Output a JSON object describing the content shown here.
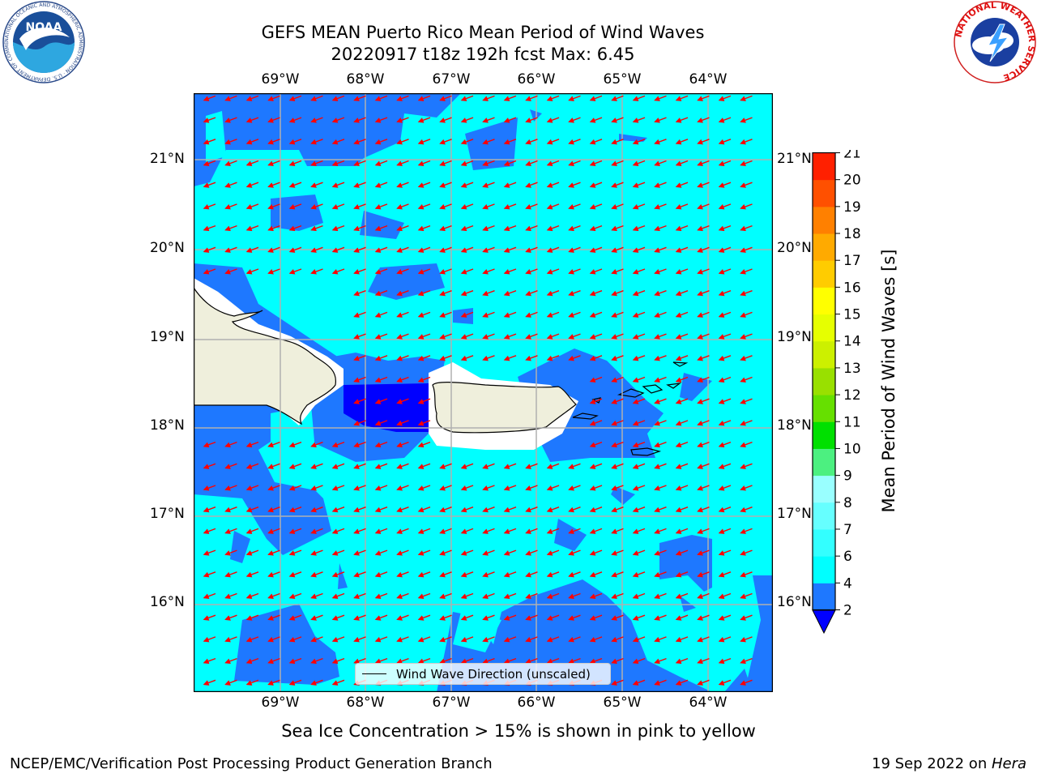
{
  "title": {
    "line1": "GEFS MEAN Puerto Rico Mean Period of Wind Waves",
    "line2": "20220917 t18z 192h fcst   Max: 6.45"
  },
  "axes": {
    "lon_labels": [
      "69°W",
      "68°W",
      "67°W",
      "66°W",
      "65°W",
      "64°W"
    ],
    "lat_labels": [
      "21°N",
      "20°N",
      "19°N",
      "18°N",
      "17°N",
      "16°N"
    ]
  },
  "colorbar": {
    "label": "Mean Period of Wind Waves [s]",
    "ticks": [
      "2",
      "4",
      "6",
      "7",
      "8",
      "9",
      "10",
      "11",
      "12",
      "13",
      "14",
      "15",
      "16",
      "17",
      "18",
      "19",
      "20",
      "21"
    ],
    "levels": [
      {
        "color": "#1e78ff"
      },
      {
        "color": "#00ffff"
      },
      {
        "color": "#33ffff"
      },
      {
        "color": "#66ffff"
      },
      {
        "color": "#99ffff"
      },
      {
        "color": "#4cf080"
      },
      {
        "color": "#00e000"
      },
      {
        "color": "#66e000"
      },
      {
        "color": "#99e000"
      },
      {
        "color": "#ccf000"
      },
      {
        "color": "#e6ff00"
      },
      {
        "color": "#ffff00"
      },
      {
        "color": "#ffcc00"
      },
      {
        "color": "#ffaa00"
      },
      {
        "color": "#ff8000"
      },
      {
        "color": "#ff5000"
      },
      {
        "color": "#ff2000"
      }
    ],
    "under_color": "#0000ff"
  },
  "map": {
    "ocean_low_color": "#1e78ff",
    "ocean_mid_color": "#00ffff",
    "ocean_deep_color": "#0000ff",
    "land_color": "#efefdc",
    "arrow_color": "#ff0000",
    "wind_wave_direction_degrees": 250
  },
  "legend": {
    "label": "Wind Wave Direction (unscaled)"
  },
  "note": "Sea Ice Concentration > 15% is shown in pink to yellow",
  "footer": {
    "left": "NCEP/EMC/Verification Post Processing Product Generation Branch",
    "date": "19 Sep 2022 on ",
    "machine": "Hera"
  },
  "logos": {
    "noaa_text": "NOAA",
    "noaa_ring": "NATIONAL OCEANIC AND ATMOSPHERIC ADMINISTRATION · U.S. DEPARTMENT OF COMMERCE",
    "nws_ring": "NATIONAL WEATHER SERVICE"
  }
}
